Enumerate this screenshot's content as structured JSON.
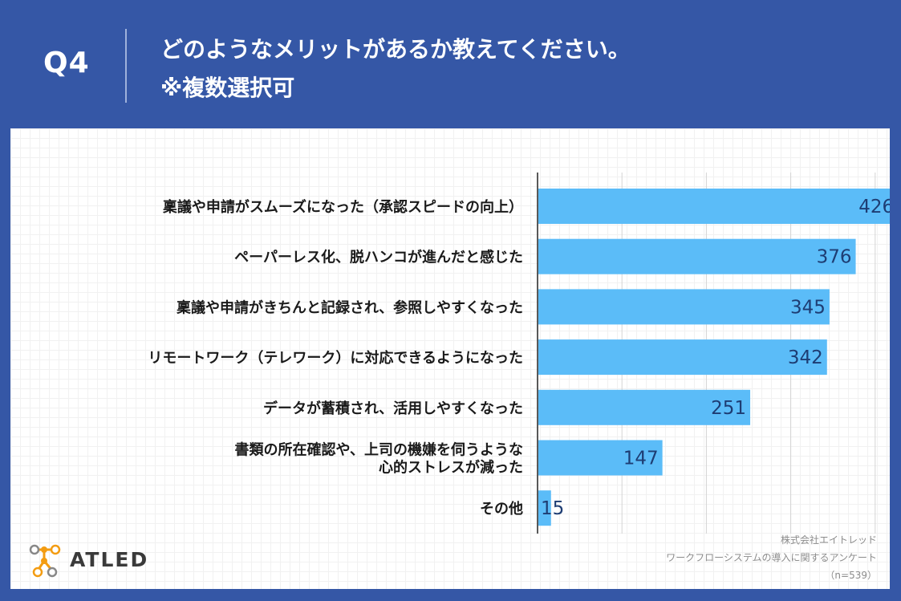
{
  "header": {
    "q_label": "Q4",
    "title_line1": "どのようなメリットがあるか教えてください。",
    "title_line2": "※複数選択可"
  },
  "chart_data": {
    "type": "bar",
    "orientation": "horizontal",
    "categories": [
      "稟議や申請がスムーズになった（承認スピードの向上）",
      "ペーパーレス化、脱ハンコが進んだと感じた",
      "稟議や申請がきちんと記録され、参照しやすくなった",
      "リモートワーク（テレワーク）に対応できるようになった",
      "データが蓄積され、活用しやすくなった",
      "書類の所在確認や、上司の機嫌を伺うような\n心的ストレスが減った",
      "その他"
    ],
    "values": [
      426,
      376,
      345,
      342,
      251,
      147,
      15
    ],
    "xlim": [
      0,
      500
    ],
    "bar_color": "#5bbcf8",
    "value_label_color": "#1e3d73",
    "grid": true
  },
  "footer": {
    "company": "株式会社エイトレッド",
    "survey": "ワークフローシステムの導入に関するアンケート",
    "sample": "（n=539）"
  },
  "logo": {
    "text": "ATLED",
    "icon": "atled-molecule-icon"
  }
}
